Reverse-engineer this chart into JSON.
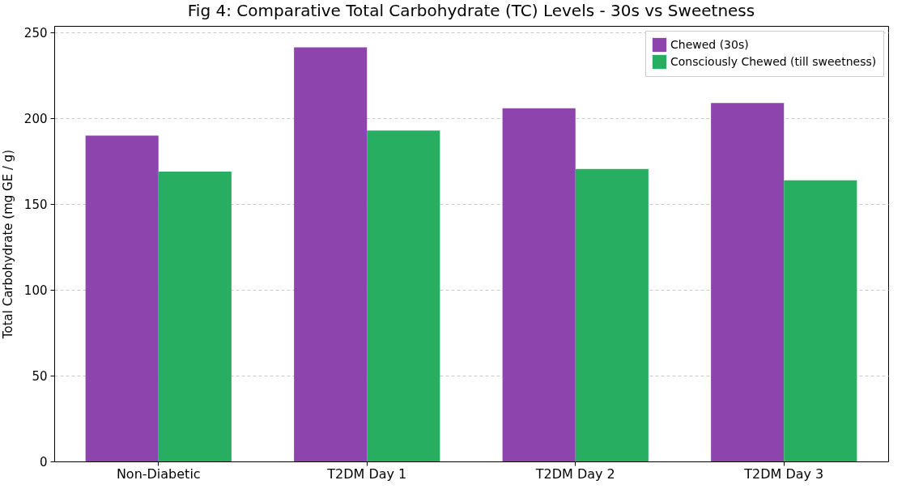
{
  "chart_data": {
    "type": "bar",
    "title": "Fig 4: Comparative Total Carbohydrate (TC) Levels - 30s vs Sweetness",
    "ylabel": "Total Carbohydrate (mg GE / g)",
    "categories": [
      "Non-Diabetic",
      "T2DM Day 1",
      "T2DM Day 2",
      "T2DM Day 3"
    ],
    "series": [
      {
        "name": "Chewed (30s)",
        "color": "#8e44ad",
        "values": [
          190,
          241.5,
          206,
          209
        ]
      },
      {
        "name": "Consciously Chewed (till sweetness)",
        "color": "#27ae60",
        "values": [
          169,
          193,
          170.5,
          164
        ]
      }
    ],
    "ylim": [
      0,
      254
    ],
    "yticks": [
      0,
      50,
      100,
      150,
      200,
      250
    ],
    "grid": "y",
    "legend": "top right"
  }
}
